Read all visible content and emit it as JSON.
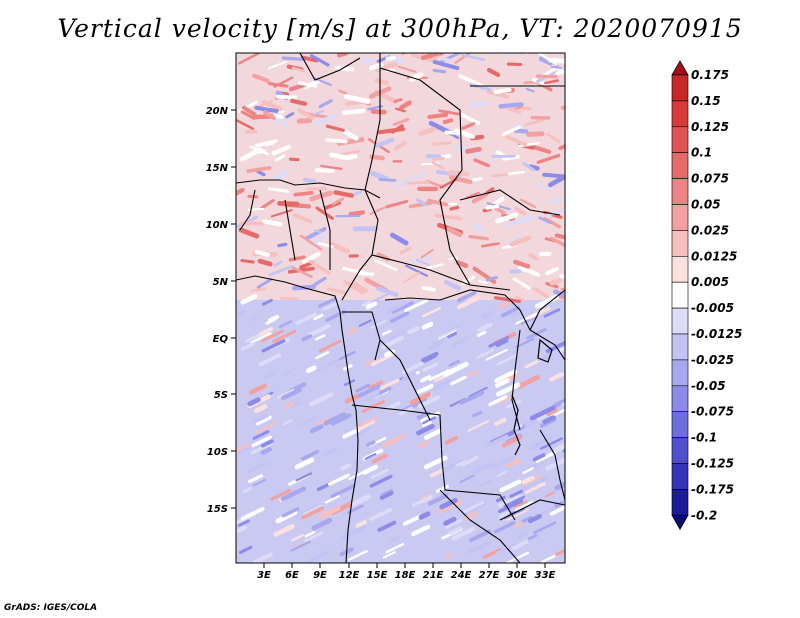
{
  "title": "Vertical velocity [m/s] at 300hPa, VT: 2020070915",
  "footer": "GrADS: IGES/COLA",
  "map": {
    "lat_labels": [
      "20N",
      "15N",
      "10N",
      "5N",
      "EQ",
      "5S",
      "10S",
      "15S"
    ],
    "lon_labels": [
      "3E",
      "6E",
      "9E",
      "12E",
      "15E",
      "18E",
      "21E",
      "24E",
      "27E",
      "30E",
      "33E"
    ]
  },
  "colorbar": {
    "levels": [
      "0.175",
      "0.15",
      "0.125",
      "0.1",
      "0.075",
      "0.05",
      "0.025",
      "0.0125",
      "0.005",
      "-0.005",
      "-0.0125",
      "-0.025",
      "-0.05",
      "-0.075",
      "-0.1",
      "-0.125",
      "-0.175",
      "-0.2"
    ],
    "colors": [
      "#a50f15",
      "#c62828",
      "#d83a3a",
      "#e05454",
      "#e66a6a",
      "#ec8484",
      "#f2a0a0",
      "#f7c0c0",
      "#fbe0e0",
      "#ffffff",
      "#dcdcf8",
      "#c4c4f4",
      "#a8a8ee",
      "#8c8ce8",
      "#6e6edc",
      "#5050cc",
      "#3434b8",
      "#1c1c98",
      "#0a0a78"
    ]
  }
}
